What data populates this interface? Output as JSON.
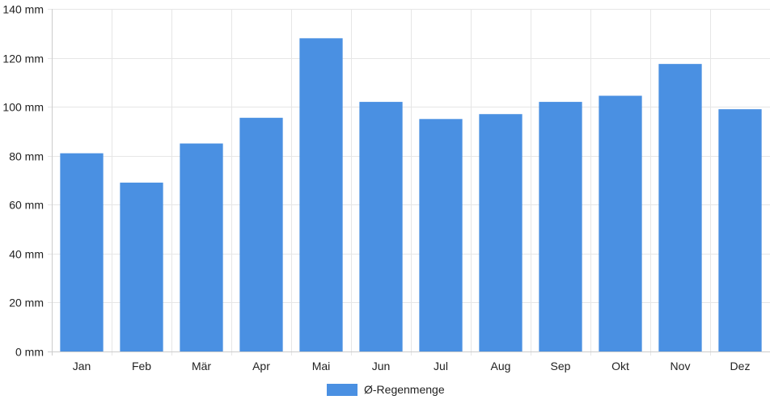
{
  "chart_data": {
    "type": "bar",
    "categories": [
      "Jan",
      "Feb",
      "Mär",
      "Apr",
      "Mai",
      "Jun",
      "Jul",
      "Aug",
      "Sep",
      "Okt",
      "Nov",
      "Dez"
    ],
    "series": [
      {
        "name": "Ø-Regenmenge",
        "values": [
          81,
          69,
          85,
          95.5,
          128,
          102,
          95,
          97,
          102,
          104.5,
          117.5,
          99
        ],
        "color": "#4a90e2"
      }
    ],
    "y_ticks": [
      "0 mm",
      "20 mm",
      "40 mm",
      "60 mm",
      "80 mm",
      "100 mm",
      "120 mm",
      "140 mm"
    ],
    "ylim": [
      0,
      140
    ],
    "y_step": 20,
    "grid": true,
    "legend_position": "bottom-center"
  }
}
